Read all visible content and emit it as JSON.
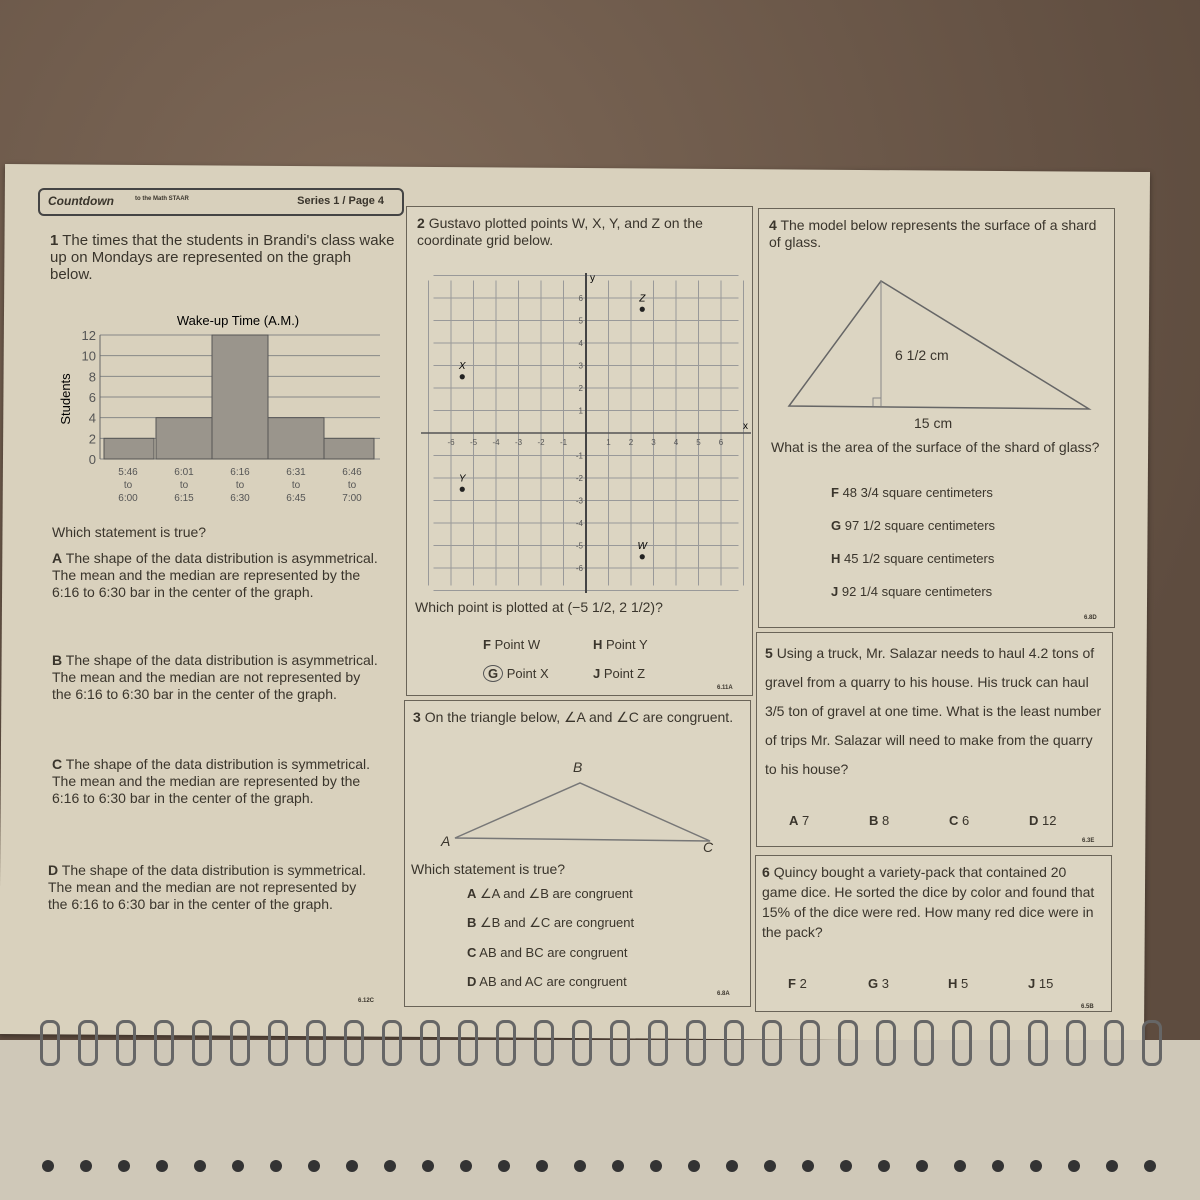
{
  "header": {
    "brand": "Countdown",
    "brand_sub": "to the Math STAAR",
    "series": "Series 1 / Page 4"
  },
  "q1": {
    "number": "1",
    "text": "The times that the students in Brandi's class wake up on Mondays are represented on the graph below.",
    "question": "Which statement is true?",
    "options": [
      {
        "letter": "A",
        "text": "The shape of the data distribution is asymmetrical. The mean and the median are represented by the 6:16 to 6:30 bar in the center of the graph."
      },
      {
        "letter": "B",
        "text": "The shape of the data distribution is asymmetrical. The mean and the median are not represented by the 6:16 to 6:30 bar in the center of the graph."
      },
      {
        "letter": "C",
        "text": "The shape of the data distribution is symmetrical. The mean and the median are represented by the 6:16 to 6:30 bar in the center of the graph."
      },
      {
        "letter": "D",
        "text": "The shape of the data distribution is symmetrical. The mean and the median are not represented by the 6:16 to 6:30 bar in the center of the graph."
      }
    ],
    "code": "6.12C"
  },
  "chart_data": {
    "type": "bar",
    "title": "Wake-up Time (A.M.)",
    "ylabel": "Students",
    "xlabel": "",
    "categories": [
      [
        "5:46",
        "to",
        "6:00"
      ],
      [
        "6:01",
        "to",
        "6:15"
      ],
      [
        "6:16",
        "to",
        "6:30"
      ],
      [
        "6:31",
        "to",
        "6:45"
      ],
      [
        "6:46",
        "to",
        "7:00"
      ]
    ],
    "values": [
      2,
      4,
      12,
      4,
      2
    ],
    "ylim": [
      0,
      12
    ],
    "yticks": [
      0,
      2,
      4,
      6,
      8,
      10,
      12
    ],
    "grid": true,
    "bar_color": "#9a958c"
  },
  "q2": {
    "number": "2",
    "text": "Gustavo plotted points W, X, Y, and Z on the coordinate grid below.",
    "question": "Which point is plotted at (−5 1/2, 2 1/2)?",
    "options": [
      {
        "letter": "F",
        "text": "Point W"
      },
      {
        "letter": "H",
        "text": "Point Y"
      },
      {
        "letter": "G",
        "text": "Point X",
        "circled": true
      },
      {
        "letter": "J",
        "text": "Point Z"
      }
    ],
    "code": "6.11A",
    "grid": {
      "xlabel": "x",
      "ylabel": "y",
      "xticks": [
        -6,
        -5,
        -4,
        -3,
        -2,
        -1,
        1,
        2,
        3,
        4,
        5,
        6
      ],
      "yticks": [
        -6,
        -5,
        -4,
        -3,
        -2,
        -1,
        1,
        2,
        3,
        4,
        5,
        6
      ],
      "points": [
        {
          "label": "X",
          "x": -5.5,
          "y": 2.5
        },
        {
          "label": "Y",
          "x": -5.5,
          "y": -2.5
        },
        {
          "label": "Z",
          "x": 2.5,
          "y": 5.5
        },
        {
          "label": "W",
          "x": 2.5,
          "y": -5.5
        }
      ]
    }
  },
  "q3": {
    "number": "3",
    "text": "On the triangle below, ∠A and ∠C are congruent.",
    "vertices": [
      "A",
      "B",
      "C"
    ],
    "question": "Which statement is true?",
    "options": [
      {
        "letter": "A",
        "text": "∠A and ∠B are congruent"
      },
      {
        "letter": "B",
        "text": "∠B and ∠C are congruent"
      },
      {
        "letter": "C",
        "text": "AB and BC are congruent"
      },
      {
        "letter": "D",
        "text": "AB and AC are congruent"
      }
    ],
    "code": "6.8A"
  },
  "q4": {
    "number": "4",
    "text": "The model below represents the surface of a shard of glass.",
    "height_label": "6 1/2 cm",
    "base_label": "15 cm",
    "question": "What is the area of the surface of the shard of glass?",
    "options": [
      {
        "letter": "F",
        "text": "48 3/4 square centimeters"
      },
      {
        "letter": "G",
        "text": "97 1/2 square centimeters"
      },
      {
        "letter": "H",
        "text": "45 1/2 square centimeters"
      },
      {
        "letter": "J",
        "text": "92 1/4 square centimeters"
      }
    ],
    "code": "6.8D"
  },
  "q5": {
    "number": "5",
    "text": "Using a truck, Mr. Salazar needs to haul 4.2 tons of gravel from a quarry to his house. His truck can haul 3/5 ton of gravel at one time. What is the least number of trips Mr. Salazar will need to make from the quarry to his house?",
    "options": [
      {
        "letter": "A",
        "text": "7"
      },
      {
        "letter": "B",
        "text": "8"
      },
      {
        "letter": "C",
        "text": "6"
      },
      {
        "letter": "D",
        "text": "12"
      }
    ],
    "code": "6.3E"
  },
  "q6": {
    "number": "6",
    "text": "Quincy bought a variety-pack that contained 20 game dice. He sorted the dice by color and found that 15% of the dice were red. How many red dice were in the pack?",
    "options": [
      {
        "letter": "F",
        "text": "2"
      },
      {
        "letter": "G",
        "text": "3"
      },
      {
        "letter": "H",
        "text": "5"
      },
      {
        "letter": "J",
        "text": "15"
      }
    ],
    "code": "6.5B"
  }
}
